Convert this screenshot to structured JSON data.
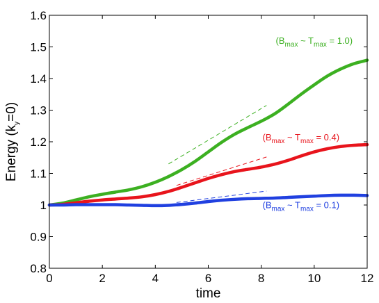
{
  "chart_data": {
    "type": "line",
    "xlabel": "time",
    "ylabel": "Energy (k",
    "ylabel_sub": "y",
    "ylabel_tail": "=0)",
    "xlim": [
      0,
      12
    ],
    "ylim": [
      0.8,
      1.6
    ],
    "xticks": [
      0,
      2,
      4,
      6,
      8,
      10,
      12
    ],
    "xtick_labels": [
      "0",
      "2",
      "4",
      "6",
      "8",
      "10",
      "12"
    ],
    "yticks": [
      0.8,
      0.9,
      1.0,
      1.1,
      1.2,
      1.3,
      1.4,
      1.5,
      1.6
    ],
    "ytick_labels": [
      "0.8",
      "0.9",
      "1",
      "1.1",
      "1.2",
      "1.3",
      "1.4",
      "1.5",
      "1.6"
    ],
    "grid": false,
    "series": [
      {
        "color": "#3cb021",
        "x": [
          0,
          0.5,
          1,
          1.5,
          2,
          2.5,
          3,
          3.5,
          4,
          4.5,
          5,
          5.5,
          6,
          6.5,
          7,
          7.5,
          8,
          8.5,
          9,
          9.5,
          10,
          10.5,
          11,
          11.5,
          12
        ],
        "y": [
          1.0,
          1.006,
          1.016,
          1.026,
          1.034,
          1.041,
          1.048,
          1.058,
          1.072,
          1.09,
          1.112,
          1.138,
          1.168,
          1.198,
          1.224,
          1.245,
          1.265,
          1.288,
          1.318,
          1.35,
          1.38,
          1.408,
          1.43,
          1.447,
          1.458
        ]
      },
      {
        "color": "#e8141c",
        "x": [
          0,
          0.5,
          1,
          1.5,
          2,
          2.5,
          3,
          3.5,
          4,
          4.5,
          5,
          5.5,
          6,
          6.5,
          7,
          7.5,
          8,
          8.5,
          9,
          9.5,
          10,
          10.5,
          11,
          11.5,
          12
        ],
        "y": [
          1.0,
          1.002,
          1.007,
          1.012,
          1.016,
          1.019,
          1.022,
          1.026,
          1.033,
          1.043,
          1.056,
          1.07,
          1.084,
          1.096,
          1.106,
          1.113,
          1.12,
          1.129,
          1.141,
          1.155,
          1.168,
          1.178,
          1.185,
          1.189,
          1.191
        ]
      },
      {
        "color": "#2040e0",
        "x": [
          0,
          0.5,
          1,
          1.5,
          2,
          2.5,
          3,
          3.5,
          4,
          4.5,
          5,
          5.5,
          6,
          6.5,
          7,
          7.5,
          8,
          8.5,
          9,
          9.5,
          10,
          10.5,
          11,
          11.5,
          12
        ],
        "y": [
          1.0,
          1.0,
          1.001,
          1.001,
          1.001,
          1.001,
          1.0,
          0.999,
          0.998,
          0.999,
          1.002,
          1.006,
          1.011,
          1.015,
          1.018,
          1.02,
          1.021,
          1.022,
          1.024,
          1.026,
          1.028,
          1.03,
          1.031,
          1.031,
          1.03
        ]
      }
    ],
    "reference_lines": [
      {
        "color": "#3cb021",
        "x": [
          4.5,
          8.2
        ],
        "y": [
          1.13,
          1.315
        ]
      },
      {
        "color": "#e8141c",
        "x": [
          4.8,
          8.2
        ],
        "y": [
          1.062,
          1.152
        ]
      },
      {
        "color": "#2040e0",
        "x": [
          4.8,
          8.2
        ],
        "y": [
          1.008,
          1.044
        ]
      }
    ],
    "annotations": [
      {
        "color": "#3cb021",
        "x": 10.0,
        "y": 1.51,
        "main": "(B",
        "sub1": "max",
        "mid": " ~ T",
        "sub2": "max",
        "tail": " = 1.0)"
      },
      {
        "color": "#e8141c",
        "x": 9.5,
        "y": 1.204,
        "main": "(B",
        "sub1": "max",
        "mid": " ~ T",
        "sub2": "max",
        "tail": " = 0.4)"
      },
      {
        "color": "#2040e0",
        "x": 9.5,
        "y": 0.99,
        "main": "(B",
        "sub1": "max",
        "mid": " ~ T",
        "sub2": "max",
        "tail": " = 0.1)"
      }
    ]
  }
}
